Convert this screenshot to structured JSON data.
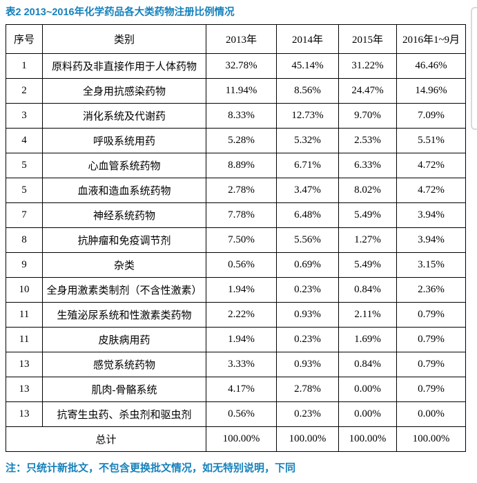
{
  "title": "表2 2013~2016年化学药品各大类药物注册比例情况",
  "table": {
    "headers": [
      "序号",
      "类别",
      "2013年",
      "2014年",
      "2015年",
      "2016年1~9月"
    ],
    "rows": [
      [
        "1",
        "原料药及非直接作用于人体药物",
        "32.78%",
        "45.14%",
        "31.22%",
        "46.46%"
      ],
      [
        "2",
        "全身用抗感染药物",
        "11.94%",
        "8.56%",
        "24.47%",
        "14.96%"
      ],
      [
        "3",
        "消化系统及代谢药",
        "8.33%",
        "12.73%",
        "9.70%",
        "7.09%"
      ],
      [
        "4",
        "呼吸系统用药",
        "5.28%",
        "5.32%",
        "2.53%",
        "5.51%"
      ],
      [
        "5",
        "心血管系统药物",
        "8.89%",
        "6.71%",
        "6.33%",
        "4.72%"
      ],
      [
        "5",
        "血液和造血系统药物",
        "2.78%",
        "3.47%",
        "8.02%",
        "4.72%"
      ],
      [
        "7",
        "神经系统药物",
        "7.78%",
        "6.48%",
        "5.49%",
        "3.94%"
      ],
      [
        "8",
        "抗肿瘤和免疫调节剂",
        "7.50%",
        "5.56%",
        "1.27%",
        "3.94%"
      ],
      [
        "9",
        "杂类",
        "0.56%",
        "0.69%",
        "5.49%",
        "3.15%"
      ],
      [
        "10",
        "全身用激素类制剂（不含性激素）",
        "1.94%",
        "0.23%",
        "0.84%",
        "2.36%"
      ],
      [
        "11",
        "生殖泌尿系统和性激素类药物",
        "2.22%",
        "0.93%",
        "2.11%",
        "0.79%"
      ],
      [
        "11",
        "皮肤病用药",
        "1.94%",
        "0.23%",
        "1.69%",
        "0.79%"
      ],
      [
        "13",
        "感觉系统药物",
        "3.33%",
        "0.93%",
        "0.84%",
        "0.79%"
      ],
      [
        "13",
        "肌肉-骨骼系统",
        "4.17%",
        "2.78%",
        "0.00%",
        "0.79%"
      ],
      [
        "13",
        "抗寄生虫药、杀虫剂和驱虫剂",
        "0.56%",
        "0.23%",
        "0.00%",
        "0.00%"
      ]
    ],
    "total": {
      "label": "总计",
      "values": [
        "100.00%",
        "100.00%",
        "100.00%",
        "100.00%"
      ]
    }
  },
  "footnote": "注：只统计新批文，不包含更换批文情况，如无特别说明，下同",
  "colors": {
    "accent": "#1581BC",
    "table_border": "#000000",
    "panel_edge": "#D9D9D9"
  }
}
